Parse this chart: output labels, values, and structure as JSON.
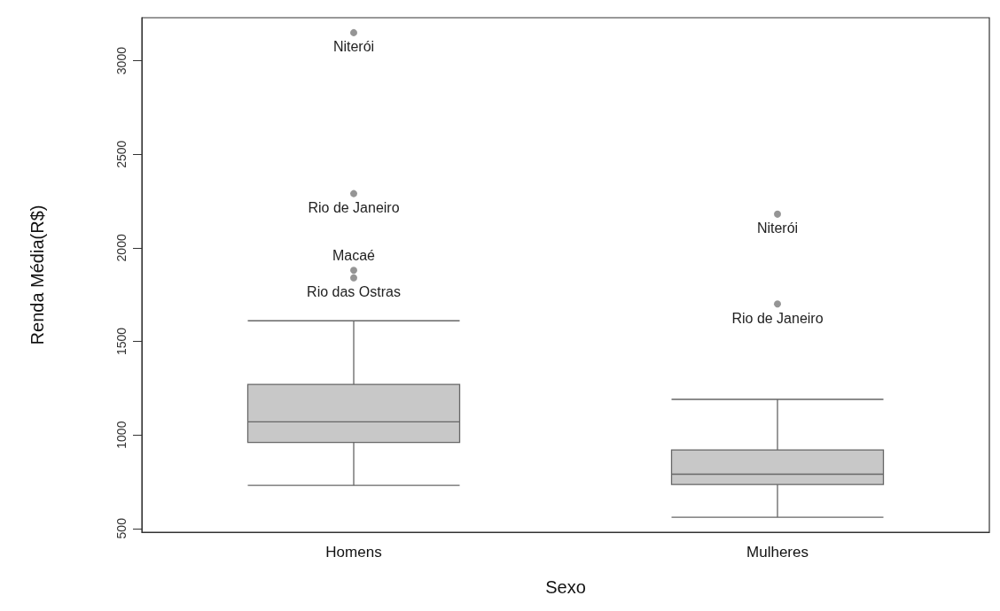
{
  "chart_data": {
    "type": "box",
    "xlabel": "Sexo",
    "ylabel": "Renda Média(R$)",
    "categories": [
      "Homens",
      "Mulheres"
    ],
    "boxes": [
      {
        "low": 730,
        "q1": 960,
        "median": 1070,
        "q3": 1270,
        "high": 1610,
        "outliers": [
          3150,
          2290,
          1880,
          1840
        ]
      },
      {
        "low": 560,
        "q1": 735,
        "median": 790,
        "q3": 920,
        "high": 1190,
        "outliers": [
          2180,
          1700
        ]
      }
    ],
    "color": "#c8c8c8",
    "ylim": [
      480,
      3230
    ],
    "yticks": [
      500,
      1000,
      1500,
      2000,
      2500,
      3000
    ],
    "grid": false,
    "annotations": [
      "Niterói",
      "Rio de Janeiro",
      "Macaé",
      "Rio das Ostras",
      "Niterói",
      "Rio de Janeiro"
    ]
  }
}
